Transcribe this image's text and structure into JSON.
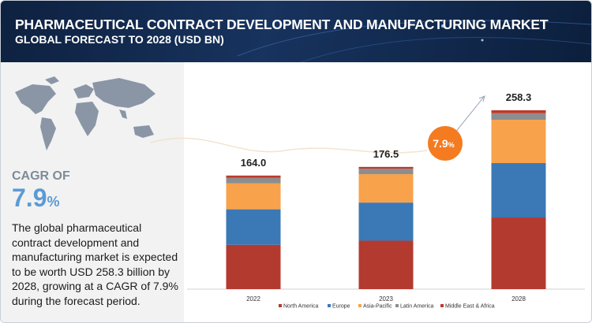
{
  "header": {
    "title": "PHARMACEUTICAL CONTRACT DEVELOPMENT AND MANUFACTURING MARKET",
    "subtitle": "GLOBAL FORECAST TO 2028 (USD BN)"
  },
  "summary": {
    "cagr_label": "CAGR OF",
    "cagr_value": "7.9",
    "cagr_unit": "%",
    "description": "The global pharmaceutical contract development and manufacturing market is expected to be worth USD 258.3 billion by 2028, growing at a CAGR of 7.9% during the forecast period."
  },
  "chart_data": {
    "type": "stacked-bar",
    "categories": [
      "2022",
      "2023",
      "2028"
    ],
    "series": [
      {
        "name": "North America",
        "color": "#b33a2f",
        "values": [
          64.0,
          70.0,
          103.5
        ]
      },
      {
        "name": "Europe",
        "color": "#3b78b6",
        "values": [
          51.3,
          55.0,
          78.5
        ]
      },
      {
        "name": "Asia-Pacific",
        "color": "#f8a24b",
        "values": [
          37.4,
          41.0,
          62.5
        ]
      },
      {
        "name": "Latin America",
        "color": "#8d8d8d",
        "values": [
          8.0,
          8.0,
          9.5
        ]
      },
      {
        "name": "Middle East & Africa",
        "color": "#c0392b",
        "values": [
          3.3,
          2.5,
          4.3
        ]
      }
    ],
    "totals": [
      164.0,
      176.5,
      258.3
    ],
    "total_labels": [
      "164.0",
      "176.5",
      "258.3"
    ]
  }
}
